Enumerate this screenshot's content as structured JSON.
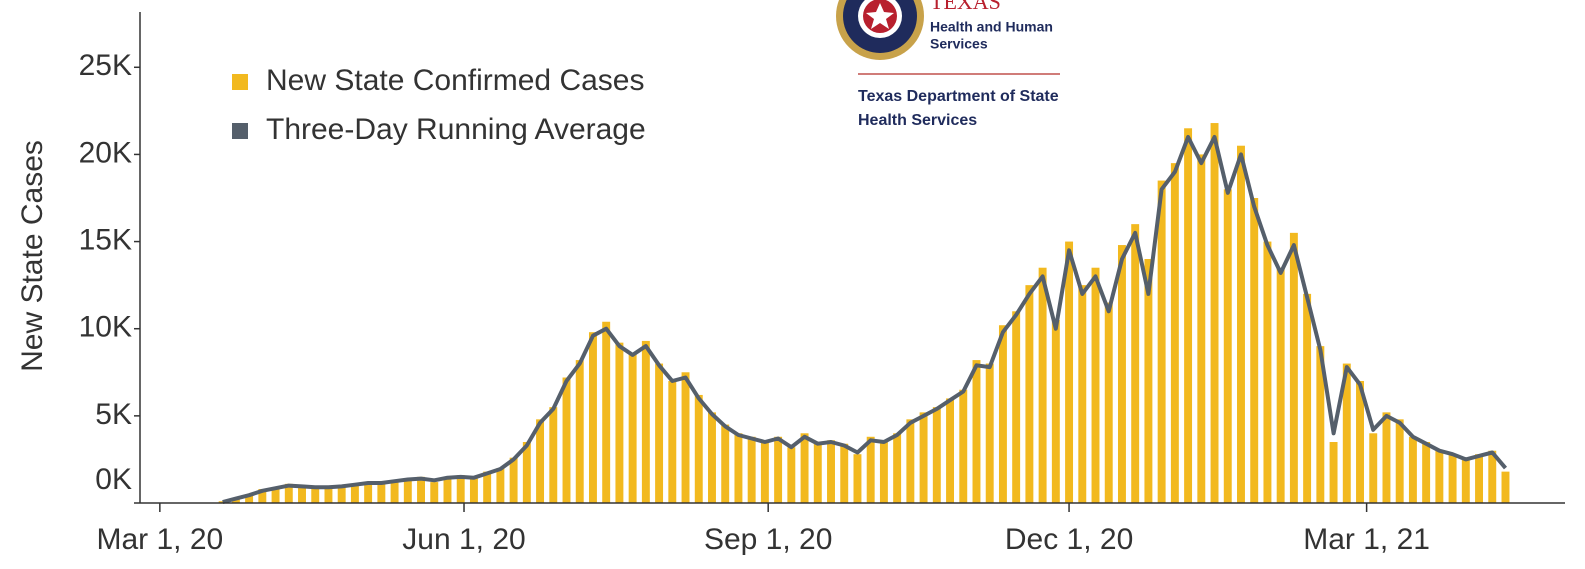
{
  "chart_data": {
    "type": "bar_line",
    "y_label": "New State Cases",
    "annotations": [
      "TEXAS",
      "Health and Human",
      "Services",
      "Texas Department of State",
      "Health Services"
    ],
    "x": [
      "2020-03-20",
      "2020-03-24",
      "2020-03-28",
      "2020-04-01",
      "2020-04-05",
      "2020-04-09",
      "2020-04-13",
      "2020-04-17",
      "2020-04-21",
      "2020-04-25",
      "2020-04-29",
      "2020-05-03",
      "2020-05-07",
      "2020-05-11",
      "2020-05-15",
      "2020-05-19",
      "2020-05-23",
      "2020-05-27",
      "2020-05-31",
      "2020-06-04",
      "2020-06-08",
      "2020-06-12",
      "2020-06-16",
      "2020-06-20",
      "2020-06-24",
      "2020-06-28",
      "2020-07-02",
      "2020-07-06",
      "2020-07-10",
      "2020-07-14",
      "2020-07-18",
      "2020-07-22",
      "2020-07-26",
      "2020-07-30",
      "2020-08-03",
      "2020-08-07",
      "2020-08-11",
      "2020-08-15",
      "2020-08-19",
      "2020-08-23",
      "2020-08-27",
      "2020-08-31",
      "2020-09-04",
      "2020-09-08",
      "2020-09-12",
      "2020-09-16",
      "2020-09-20",
      "2020-09-24",
      "2020-09-28",
      "2020-10-02",
      "2020-10-06",
      "2020-10-10",
      "2020-10-14",
      "2020-10-18",
      "2020-10-22",
      "2020-10-26",
      "2020-10-30",
      "2020-11-03",
      "2020-11-07",
      "2020-11-11",
      "2020-11-15",
      "2020-11-19",
      "2020-11-23",
      "2020-11-27",
      "2020-12-01",
      "2020-12-05",
      "2020-12-09",
      "2020-12-13",
      "2020-12-17",
      "2020-12-21",
      "2020-12-25",
      "2020-12-29",
      "2021-01-02",
      "2021-01-06",
      "2021-01-10",
      "2021-01-14",
      "2021-01-18",
      "2021-01-22",
      "2021-01-26",
      "2021-01-30",
      "2021-02-03",
      "2021-02-07",
      "2021-02-11",
      "2021-02-15",
      "2021-02-19",
      "2021-02-23",
      "2021-02-27",
      "2021-03-03",
      "2021-03-07",
      "2021-03-11",
      "2021-03-15",
      "2021-03-19",
      "2021-03-23",
      "2021-03-27",
      "2021-03-31",
      "2021-04-04",
      "2021-04-08",
      "2021-04-12"
    ],
    "series": [
      {
        "name": "New State Confirmed Cases",
        "kind": "bar",
        "color": "#f2b91f",
        "values": [
          100,
          300,
          500,
          800,
          900,
          1100,
          1000,
          900,
          900,
          1000,
          1100,
          1200,
          1100,
          1300,
          1400,
          1500,
          1200,
          1500,
          1600,
          1400,
          1800,
          2000,
          2600,
          3500,
          4800,
          5500,
          7200,
          8200,
          9800,
          10400,
          9200,
          8600,
          9300,
          8000,
          7000,
          7500,
          6200,
          5200,
          4500,
          4000,
          3800,
          3500,
          3800,
          3200,
          4000,
          3500,
          3600,
          3400,
          2800,
          3800,
          3600,
          4000,
          4800,
          5200,
          5500,
          6000,
          6500,
          8200,
          8000,
          10200,
          11000,
          12500,
          13500,
          10500,
          15000,
          12500,
          13500,
          11500,
          14800,
          16000,
          14000,
          18500,
          19500,
          21500,
          20000,
          21800,
          18000,
          20500,
          17500,
          15000,
          13500,
          15500,
          12000,
          9000,
          3500,
          8000,
          7000,
          4000,
          5200,
          4800,
          3800,
          3500,
          3000,
          2800,
          2500,
          2800,
          3000,
          1800
        ]
      },
      {
        "name": "Three-Day Running Average",
        "kind": "line",
        "color": "#555f6b",
        "values": [
          50,
          250,
          450,
          700,
          850,
          1000,
          950,
          900,
          900,
          950,
          1050,
          1150,
          1150,
          1250,
          1350,
          1400,
          1300,
          1450,
          1500,
          1450,
          1700,
          1950,
          2500,
          3300,
          4600,
          5400,
          7000,
          8000,
          9600,
          10000,
          9000,
          8500,
          9000,
          7900,
          7000,
          7200,
          6000,
          5100,
          4400,
          3900,
          3700,
          3500,
          3700,
          3200,
          3800,
          3400,
          3500,
          3300,
          2900,
          3600,
          3500,
          3900,
          4600,
          5000,
          5400,
          5900,
          6400,
          7900,
          7800,
          9800,
          10800,
          12000,
          13000,
          10000,
          14500,
          12000,
          13000,
          11000,
          14000,
          15500,
          12000,
          18000,
          19000,
          21000,
          19500,
          21000,
          17800,
          20000,
          17000,
          14800,
          13200,
          14800,
          11800,
          8800,
          4000,
          7800,
          6800,
          4200,
          5000,
          4600,
          3800,
          3400,
          3000,
          2800,
          2500,
          2700,
          2900,
          2000
        ]
      }
    ],
    "xlim": [
      "2020-02-24",
      "2021-04-30"
    ],
    "xticks": [
      {
        "value": "2020-03-01",
        "label": "Mar 1, 20"
      },
      {
        "value": "2020-06-01",
        "label": "Jun 1, 20"
      },
      {
        "value": "2020-09-01",
        "label": "Sep 1, 20"
      },
      {
        "value": "2020-12-01",
        "label": "Dec 1, 20"
      },
      {
        "value": "2021-03-01",
        "label": "Mar 1, 21"
      }
    ],
    "ylim": [
      0,
      28000
    ],
    "yticks": [
      {
        "value": 0,
        "label": "0K"
      },
      {
        "value": 5000,
        "label": "5K"
      },
      {
        "value": 10000,
        "label": "10K"
      },
      {
        "value": 15000,
        "label": "15K"
      },
      {
        "value": 20000,
        "label": "20K"
      },
      {
        "value": 25000,
        "label": "25K"
      }
    ],
    "legend": "upper left"
  }
}
